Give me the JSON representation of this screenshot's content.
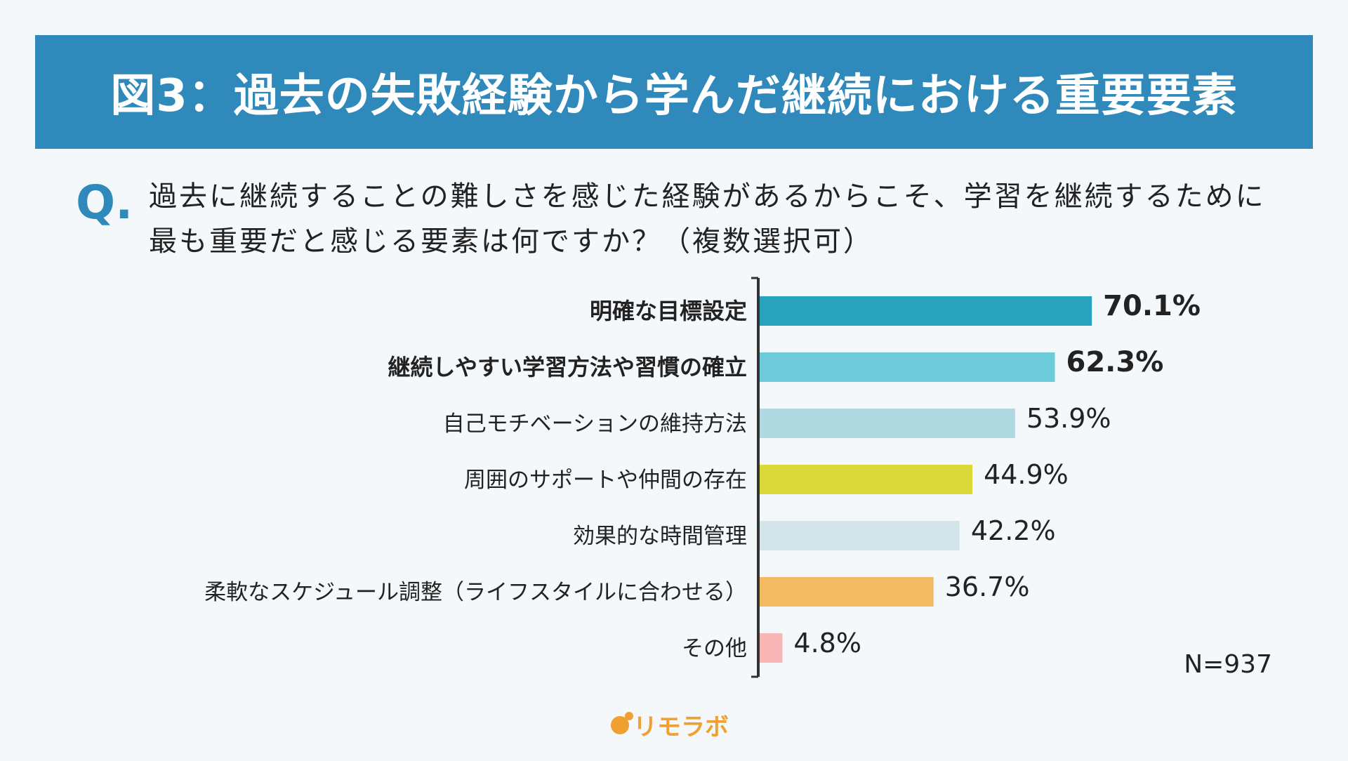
{
  "header": {
    "title": "図3：過去の失敗経験から学んだ継続における重要要素"
  },
  "question": {
    "mark": "Q",
    "text": "過去に継続することの難しさを感じた経験があるからこそ、学習を継続するために最も重要だと感じる要素は何ですか？（複数選択可）"
  },
  "note": "N=937",
  "logo": {
    "text": "リモラボ"
  },
  "chart_data": {
    "type": "bar",
    "orientation": "horizontal",
    "categories": [
      "明確な目標設定",
      "継続しやすい学習方法や習慣の確立",
      "自己モチベーションの維持方法",
      "周囲のサポートや仲間の存在",
      "効果的な時間管理",
      "柔軟なスケジュール調整（ライフスタイルに合わせる）",
      "その他"
    ],
    "values": [
      70.1,
      62.3,
      53.9,
      44.9,
      42.2,
      36.7,
      4.8
    ],
    "value_labels": [
      "70.1%",
      "62.3%",
      "53.9%",
      "44.9%",
      "42.2%",
      "36.7%",
      "4.8%"
    ],
    "bold": [
      true,
      true,
      false,
      false,
      false,
      false,
      false
    ],
    "colors": [
      "#28a3bd",
      "#6ccad9",
      "#b0d8df",
      "#d9d93a",
      "#d3e5e8",
      "#f4ba63",
      "#f8b6b6"
    ],
    "unit": "%",
    "xlim": [
      0,
      100
    ],
    "grid": false
  }
}
